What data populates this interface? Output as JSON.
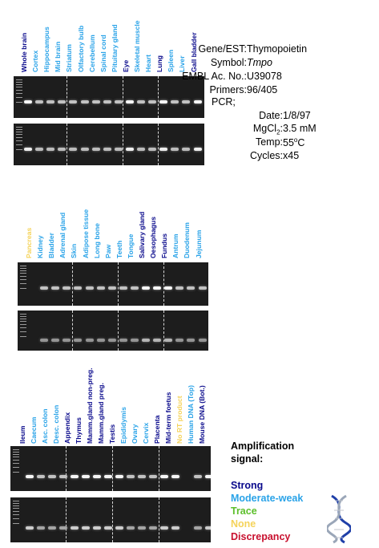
{
  "colors": {
    "strong": "#0a0a8c",
    "moderate": "#2aa3e8",
    "trace": "#5cbf2a",
    "none": "#f5d35a",
    "discrepancy": "#c8102e"
  },
  "info": {
    "gene_key": "Gene/EST:",
    "gene_val": "Thymopoietin",
    "symbol_key": "Symbol:",
    "symbol_val": "Tmpo",
    "embl_key": "EMBL Ac. No.:",
    "embl_val": "U39078",
    "primers_key": "Primers:",
    "primers_val": "96/405",
    "pcr_key": "PCR;",
    "date_key": "Date:",
    "date_val": "1/8/97",
    "mg_key": "MgCl",
    "mg_sub": "2",
    "mg_colon": ":",
    "mg_val": "3.5 mM",
    "temp_key": "Temp:",
    "temp_val": "55",
    "temp_sup": "o",
    "temp_unit": "C",
    "cycles_key": "Cycles:",
    "cycles_val": "x45"
  },
  "panel1": {
    "lanes": [
      {
        "label": "Whole brain",
        "signal": "strong"
      },
      {
        "label": "Cortex",
        "signal": "moderate"
      },
      {
        "label": "Hippocampus",
        "signal": "moderate"
      },
      {
        "label": "Mid brain",
        "signal": "moderate"
      },
      {
        "label": "Striatum",
        "signal": "moderate"
      },
      {
        "label": "Olfactory bulb",
        "signal": "moderate"
      },
      {
        "label": "Cerebellum",
        "signal": "moderate"
      },
      {
        "label": "Spinal cord",
        "signal": "moderate"
      },
      {
        "label": "Pituitary gland",
        "signal": "moderate"
      },
      {
        "label": "Eye",
        "signal": "strong"
      },
      {
        "label": "Skeletal muscle",
        "signal": "moderate"
      },
      {
        "label": "Heart",
        "signal": "moderate"
      },
      {
        "label": "Lung",
        "signal": "strong"
      },
      {
        "label": "Spleen",
        "signal": "moderate"
      },
      {
        "label": "Liver",
        "signal": "moderate"
      },
      {
        "label": "Gall bladder",
        "signal": "strong"
      }
    ]
  },
  "panel2": {
    "lanes": [
      {
        "label": "Pancreas",
        "signal": "none"
      },
      {
        "label": "Kidney",
        "signal": "moderate"
      },
      {
        "label": "Bladder",
        "signal": "moderate"
      },
      {
        "label": "Adrenal gland",
        "signal": "moderate"
      },
      {
        "label": "Skin",
        "signal": "moderate"
      },
      {
        "label": "Adipose tissue",
        "signal": "moderate"
      },
      {
        "label": "Long bone",
        "signal": "moderate"
      },
      {
        "label": "Paw",
        "signal": "moderate"
      },
      {
        "label": "Teeth",
        "signal": "moderate"
      },
      {
        "label": "Tongue",
        "signal": "moderate"
      },
      {
        "label": "Salivary gland",
        "signal": "strong"
      },
      {
        "label": "Oesophagus",
        "signal": "strong"
      },
      {
        "label": "Fundus",
        "signal": "strong"
      },
      {
        "label": "Antrum",
        "signal": "moderate"
      },
      {
        "label": "Duodenum",
        "signal": "moderate"
      },
      {
        "label": "Jejunum",
        "signal": "moderate"
      }
    ]
  },
  "panel3": {
    "lanes": [
      {
        "label": "Ileum",
        "signal": "strong"
      },
      {
        "label": "Caecum",
        "signal": "moderate"
      },
      {
        "label": "Asc. colon",
        "signal": "moderate"
      },
      {
        "label": "Desc. colon",
        "signal": "moderate"
      },
      {
        "label": "Appendix",
        "signal": "strong"
      },
      {
        "label": "Thymus",
        "signal": "strong"
      },
      {
        "label": "Mamm.gland non-preg.",
        "signal": "strong"
      },
      {
        "label": "Mamm.gland preg.",
        "signal": "strong"
      },
      {
        "label": "Testis",
        "signal": "strong"
      },
      {
        "label": "Epididymis",
        "signal": "moderate"
      },
      {
        "label": "Ovary",
        "signal": "moderate"
      },
      {
        "label": "Cervix",
        "signal": "moderate"
      },
      {
        "label": "Placenta",
        "signal": "strong"
      },
      {
        "label": "Mid-term foetus",
        "signal": "strong"
      },
      {
        "label": "No RT product",
        "signal": "none"
      },
      {
        "label": "Human DNA (Top)",
        "signal": "moderate"
      },
      {
        "label": "Mouse DNA (Bot.)",
        "signal": "strong"
      }
    ]
  },
  "legend": {
    "title_line1": "Amplification",
    "title_line2": "signal:",
    "strong": "Strong",
    "moderate": "Moderate-weak",
    "trace": "Trace",
    "none": "None",
    "discrepancy": "Discrepancy",
    "dna_icon": "dna-helix-icon"
  }
}
